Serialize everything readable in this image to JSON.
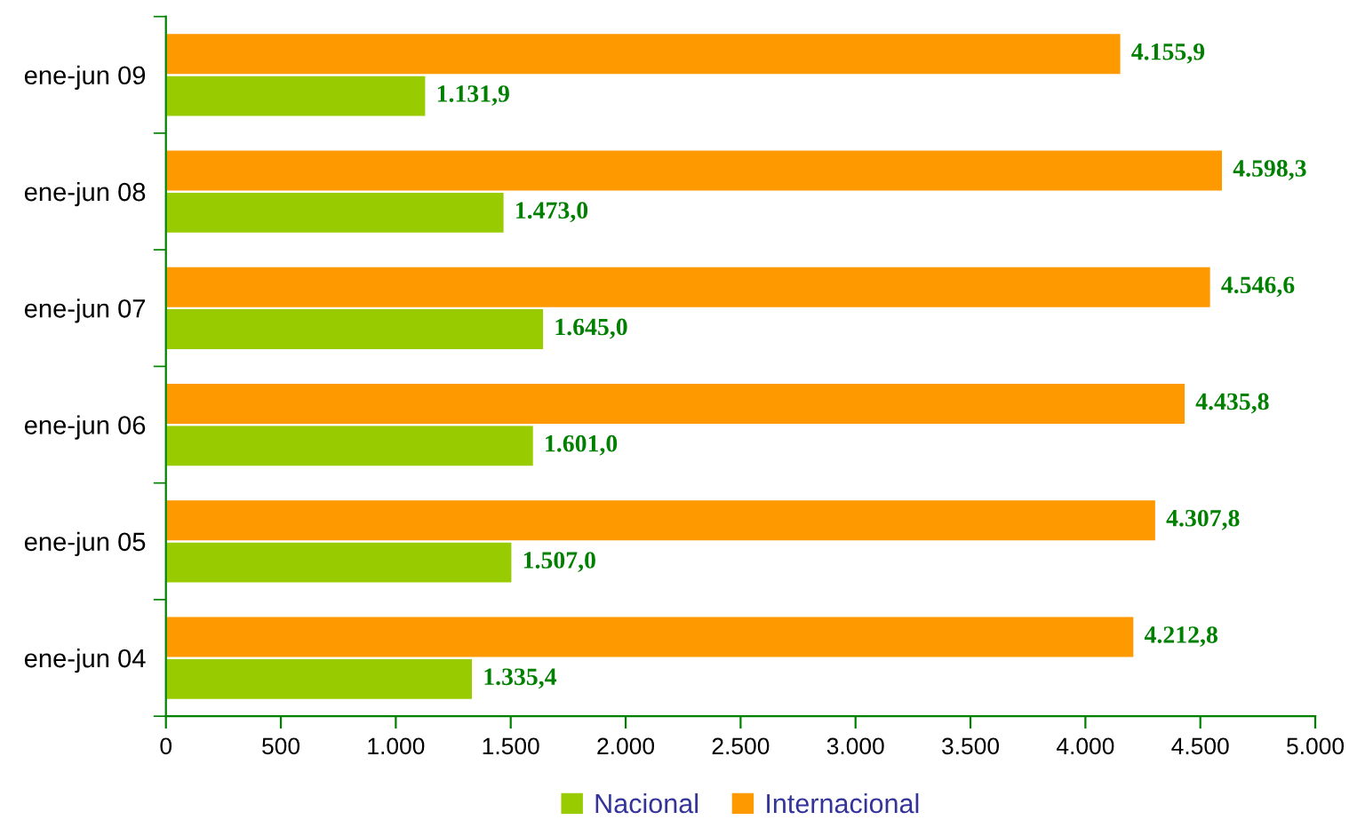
{
  "chart_data": {
    "type": "bar",
    "orientation": "horizontal",
    "categories": [
      "ene-jun 09",
      "ene-jun 08",
      "ene-jun 07",
      "ene-jun 06",
      "ene-jun 05",
      "ene-jun 04"
    ],
    "series": [
      {
        "name": "Nacional",
        "color": "#99cc00",
        "values": [
          1131.9,
          1473.0,
          1645.0,
          1601.0,
          1507.0,
          1335.4
        ],
        "value_labels": [
          "1.131,9",
          "1.473,0",
          "1.645,0",
          "1.601,0",
          "1.507,0",
          "1.335,4"
        ]
      },
      {
        "name": "Internacional",
        "color": "#ff9900",
        "values": [
          4155.9,
          4598.3,
          4546.6,
          4435.8,
          4307.8,
          4212.8
        ],
        "value_labels": [
          "4.155,9",
          "4.598,3",
          "4.546,6",
          "4.435,8",
          "4.307,8",
          "4.212,8"
        ]
      }
    ],
    "xlim": [
      0,
      5000
    ],
    "xticks": [
      0,
      500,
      {
        "value": 1000,
        "label": "1.000"
      },
      {
        "value": 1500,
        "label": "1.500"
      },
      {
        "value": 2000,
        "label": "2.000"
      },
      {
        "value": 2500,
        "label": "2.500"
      },
      {
        "value": 3000,
        "label": "3.000"
      },
      {
        "value": 3500,
        "label": "3.500"
      },
      {
        "value": 4000,
        "label": "4.000"
      },
      {
        "value": 4500,
        "label": "4.500"
      },
      {
        "value": 5000,
        "label": "5.000"
      }
    ],
    "grid": false,
    "legend": "bottom"
  }
}
